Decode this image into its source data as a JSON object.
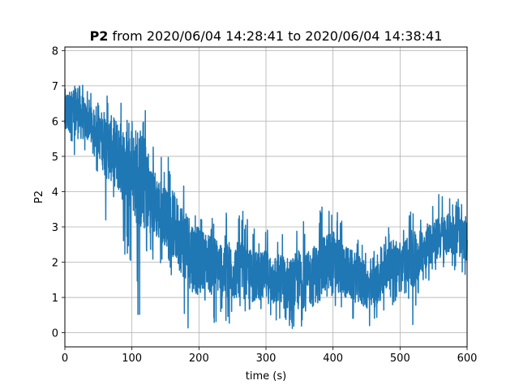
{
  "chart_data": {
    "type": "line",
    "title_bold": "P2",
    "title_rest": " from 2020/06/04 14:28:41 to 2020/06/04 14:38:41",
    "xlabel": "time (s)",
    "ylabel": "P2",
    "xlim": [
      0,
      600
    ],
    "ylim": [
      -0.4,
      8.1
    ],
    "xticks": [
      0,
      100,
      200,
      300,
      400,
      500,
      600
    ],
    "yticks": [
      0,
      1,
      2,
      3,
      4,
      5,
      6,
      7,
      8
    ],
    "grid": true,
    "line_color": "#1f77b4",
    "series": [
      {
        "x": [
          0,
          10,
          20,
          30,
          40,
          50,
          60,
          70,
          80,
          90,
          100,
          110,
          120,
          130,
          140,
          150,
          160,
          170,
          180,
          190,
          200,
          210,
          220,
          230,
          240,
          250,
          260,
          270,
          280,
          290,
          300,
          310,
          320,
          330,
          340,
          350,
          360,
          370,
          380,
          390,
          400,
          410,
          420,
          430,
          440,
          450,
          460,
          470,
          480,
          490,
          500,
          510,
          520,
          530,
          540,
          550,
          560,
          570,
          580,
          590,
          600
        ],
        "y": [
          6.2,
          6.3,
          6.3,
          6.0,
          5.9,
          5.6,
          5.4,
          5.2,
          5.0,
          4.7,
          4.6,
          4.4,
          4.2,
          3.8,
          3.5,
          3.3,
          3.1,
          2.8,
          2.5,
          2.2,
          2.0,
          2.1,
          1.9,
          1.9,
          1.8,
          1.7,
          1.8,
          1.7,
          1.6,
          1.6,
          1.6,
          1.5,
          1.5,
          1.4,
          1.4,
          1.5,
          1.5,
          1.6,
          1.8,
          1.9,
          2.0,
          1.9,
          1.7,
          1.6,
          1.5,
          1.3,
          1.2,
          1.5,
          1.8,
          2.0,
          2.0,
          2.1,
          2.0,
          2.3,
          2.5,
          2.6,
          2.7,
          2.8,
          2.8,
          2.7,
          2.6
        ],
        "min": [
          5.1,
          5.3,
          4.4,
          5.0,
          5.0,
          4.4,
          2.8,
          4.0,
          3.0,
          2.0,
          2.0,
          0.2,
          2.0,
          1.8,
          1.6,
          2.0,
          1.5,
          1.0,
          0.2,
          0.0,
          0.0,
          0.8,
          0.0,
          0.5,
          0.0,
          0.4,
          0.6,
          0.6,
          0.2,
          0.4,
          0.5,
          0.0,
          0.0,
          0.2,
          0.0,
          0.0,
          0.5,
          0.0,
          0.7,
          0.3,
          0.5,
          0.5,
          0.3,
          0.3,
          0.0,
          0.0,
          0.2,
          0.4,
          0.6,
          0.8,
          1.0,
          1.1,
          0.0,
          1.3,
          1.4,
          1.7,
          1.8,
          1.9,
          1.8,
          1.7,
          1.5
        ],
        "max": [
          7.7,
          7.4,
          7.4,
          7.0,
          6.8,
          6.5,
          6.5,
          7.4,
          6.8,
          6.2,
          6.0,
          5.8,
          6.8,
          5.4,
          5.0,
          5.0,
          5.0,
          4.6,
          4.2,
          3.8,
          3.5,
          3.6,
          3.3,
          3.2,
          3.5,
          3.3,
          3.5,
          3.4,
          3.0,
          2.8,
          3.2,
          2.7,
          2.7,
          3.0,
          2.8,
          3.3,
          3.1,
          3.2,
          3.5,
          3.7,
          3.9,
          3.4,
          3.1,
          2.9,
          2.6,
          2.3,
          2.3,
          2.6,
          2.9,
          3.3,
          3.2,
          3.3,
          3.6,
          3.5,
          3.8,
          3.8,
          4.0,
          4.0,
          3.9,
          3.8,
          3.5
        ]
      }
    ]
  }
}
